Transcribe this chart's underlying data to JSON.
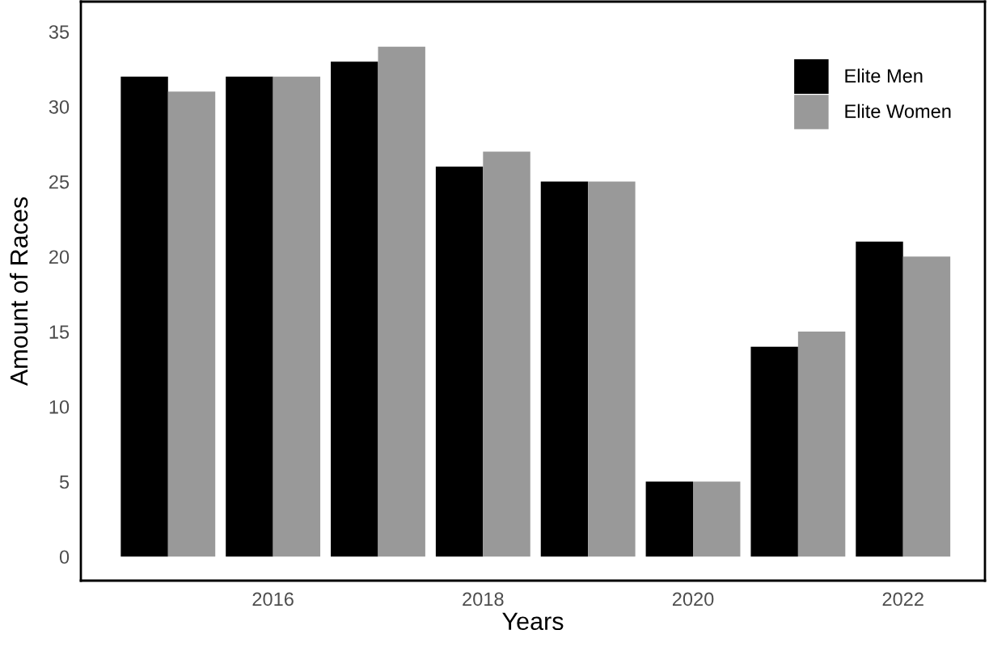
{
  "chart_data": {
    "type": "bar",
    "xlabel": "Years",
    "ylabel": "Amount of Races",
    "x": [
      2015,
      2016,
      2017,
      2018,
      2019,
      2020,
      2021,
      2022
    ],
    "series": [
      {
        "name": "Elite Men",
        "color": "#000000",
        "values": [
          32,
          32,
          33,
          26,
          25,
          5,
          14,
          21
        ]
      },
      {
        "name": "Elite Women",
        "color": "#999999",
        "values": [
          31,
          32,
          34,
          27,
          25,
          5,
          15,
          20
        ]
      }
    ],
    "xlim": [
      2014.17,
      2022.78
    ],
    "xticks": [
      2016,
      2018,
      2020,
      2022
    ],
    "ylim": [
      -1.6,
      37
    ],
    "yticks": [
      0,
      5,
      10,
      15,
      20,
      25,
      30,
      35
    ],
    "grid": false,
    "legend": "top right"
  }
}
